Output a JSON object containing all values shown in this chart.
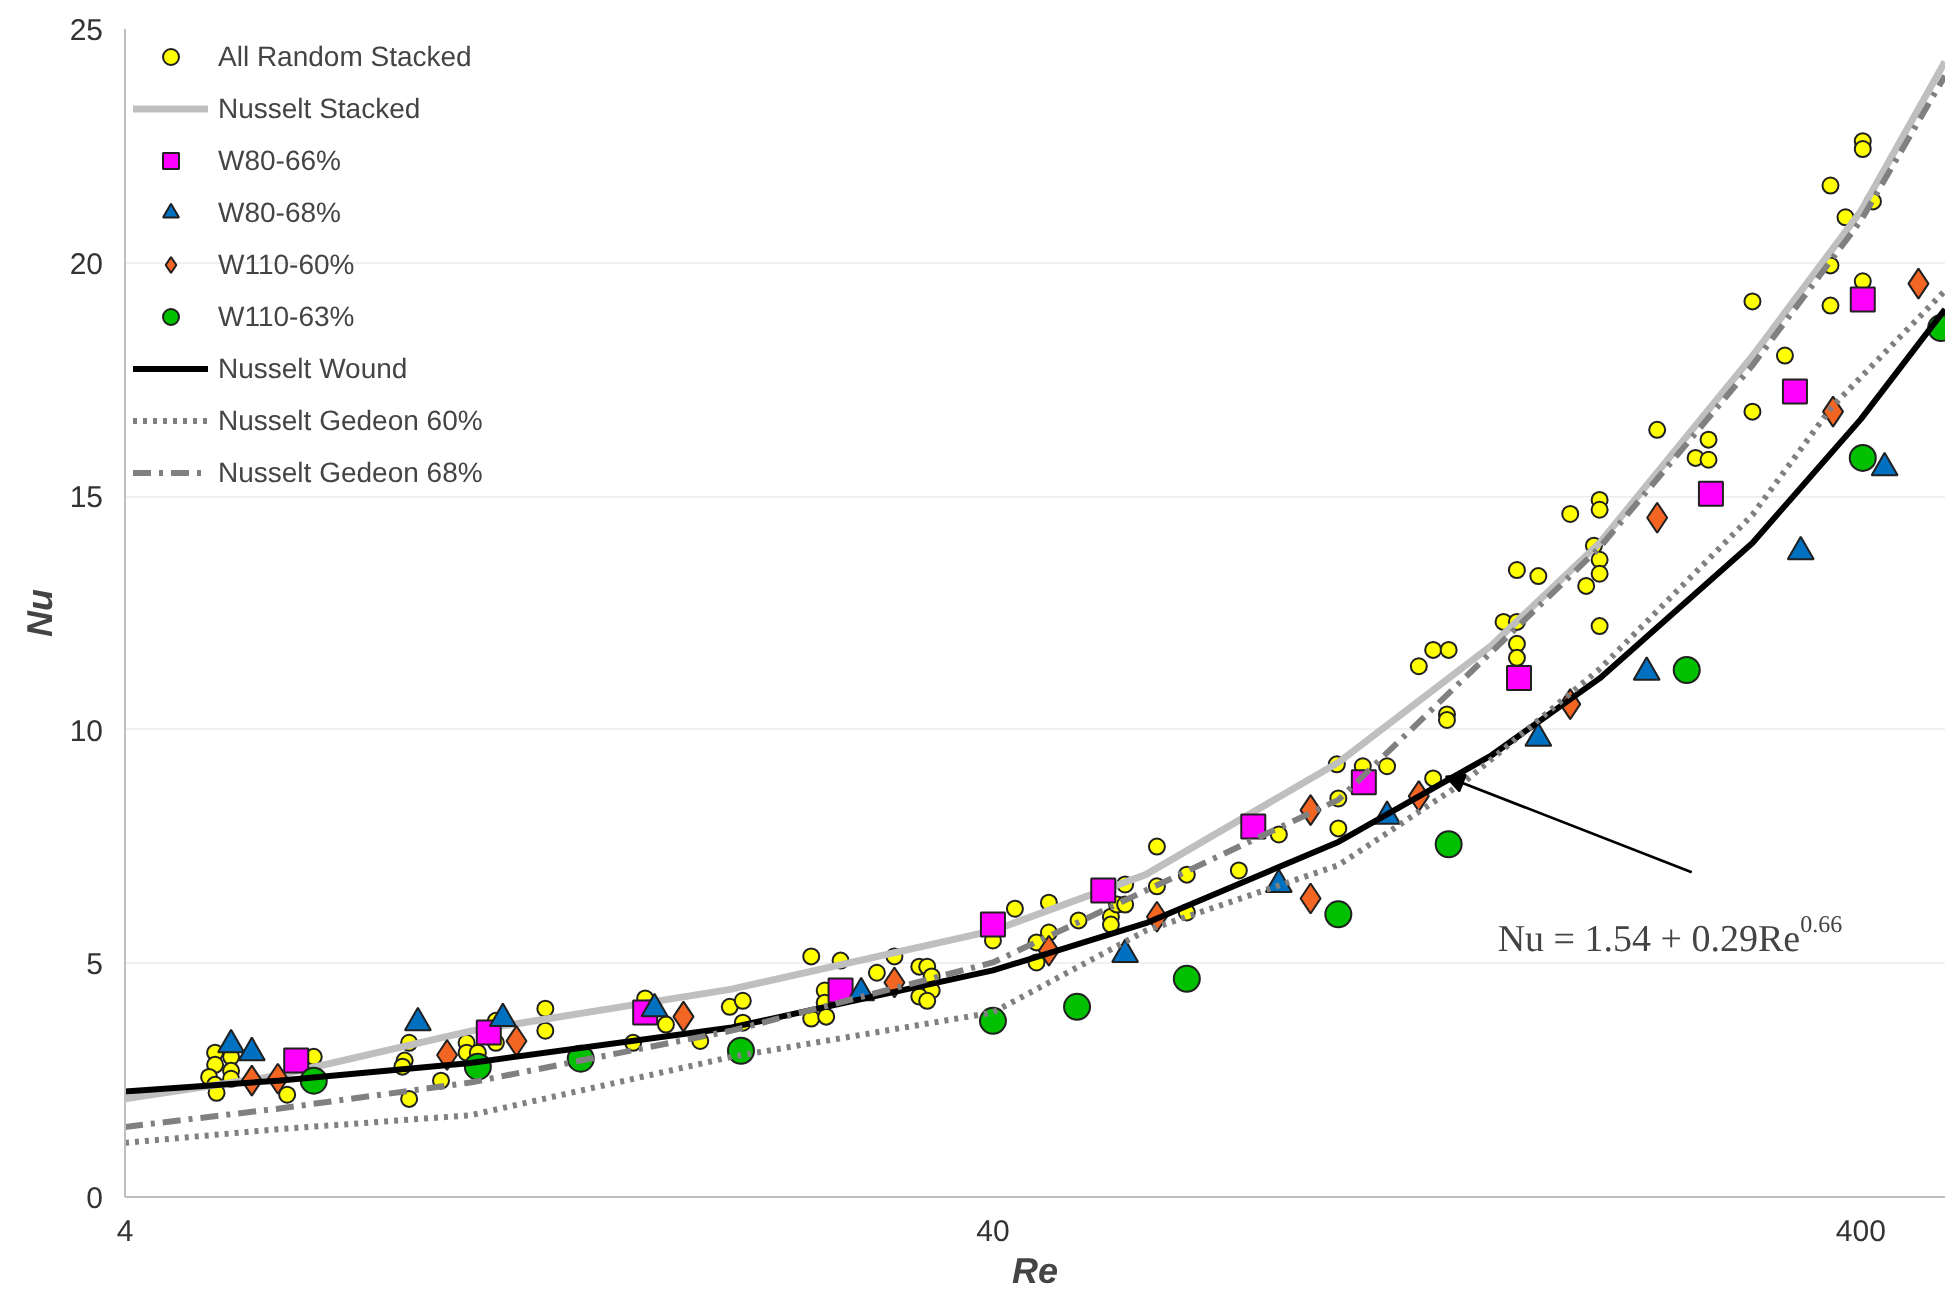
{
  "chart_data": {
    "type": "scatter",
    "xlabel": "Re",
    "ylabel": "Nu",
    "log": "x",
    "xlim": [
      4,
      500
    ],
    "xticks": [
      4,
      40,
      400
    ],
    "ylim": [
      0,
      25
    ],
    "yticks": [
      0,
      5,
      10,
      15,
      20,
      25
    ],
    "grid": "y",
    "legend": "top left",
    "annotations": [
      {
        "text": "Nu = 1.54 + 0.29Re$^{0.66}$",
        "x": 133,
        "y": 9.0
      }
    ],
    "series": [
      {
        "name": "All Random Stacked",
        "marker": "circle",
        "color": "#ffff00",
        "x": [
          5.08,
          5.08,
          5.0,
          5.08,
          5.1,
          5.3,
          5.3,
          5.3,
          6.15,
          6.6,
          8.5,
          8.4,
          8.35,
          8.5,
          9.25,
          9.9,
          9.9,
          10.2,
          10.7,
          10.7,
          12.2,
          12.2,
          15.4,
          15.9,
          16.8,
          18.4,
          19.9,
          20.6,
          20.6,
          24.7,
          26.7,
          30.8,
          29.4,
          32.9,
          33.6,
          34.0,
          34.0,
          32.9,
          33.6,
          25.6,
          25.6,
          24.7,
          25.7,
          40,
          42.4,
          46.4,
          44.9,
          46.4,
          44.9,
          50.2,
          54.7,
          54.7,
          55.6,
          56.8,
          56.8,
          61.8,
          61.8,
          66.9,
          66.9,
          76.8,
          85.4,
          99.6,
          100,
          100,
          106.7,
          113.8,
          402,
          402,
          369,
          413,
          384,
          369,
          402,
          369,
          300,
          327,
          300,
          267,
          258,
          267,
          233,
          200,
          200,
          185,
          197,
          200,
          200,
          193,
          160.6,
          170,
          200,
          155,
          160.6,
          160.6,
          160.6,
          123.8,
          128.6,
          134,
          133.4,
          133.4,
          128.6
        ],
        "values": [
          3.09,
          2.83,
          2.57,
          2.4,
          2.23,
          3.0,
          2.7,
          2.53,
          2.19,
          3.0,
          3.3,
          2.92,
          2.79,
          2.1,
          2.49,
          3.3,
          3.09,
          3.09,
          3.77,
          3.3,
          4.03,
          3.56,
          3.3,
          4.25,
          3.69,
          3.34,
          4.07,
          4.2,
          3.73,
          5.15,
          5.06,
          5.15,
          4.8,
          4.93,
          4.93,
          4.72,
          4.42,
          4.29,
          4.2,
          4.42,
          4.16,
          3.82,
          3.86,
          5.49,
          6.17,
          6.3,
          5.45,
          5.66,
          5.02,
          5.92,
          6.0,
          5.83,
          6.26,
          6.26,
          6.69,
          6.65,
          7.5,
          6.9,
          6.09,
          6.99,
          7.76,
          9.26,
          8.53,
          7.89,
          9.22,
          9.22,
          22.6,
          22.43,
          21.65,
          21.31,
          20.97,
          19.94,
          19.6,
          19.08,
          19.17,
          18.01,
          16.81,
          16.21,
          15.82,
          15.78,
          16.42,
          14.92,
          14.71,
          14.62,
          13.94,
          13.64,
          13.34,
          13.08,
          13.42,
          13.29,
          12.22,
          12.31,
          12.31,
          11.84,
          11.54,
          11.36,
          11.71,
          11.71,
          10.33,
          10.21,
          8.96
        ]
      },
      {
        "name": "Nusselt Stacked",
        "type": "line",
        "line_style": "solid",
        "color": "#bfbfbf",
        "x": [
          4,
          6,
          10,
          20,
          40,
          60,
          100,
          150,
          200,
          300,
          400,
          500
        ],
        "values": [
          2.1,
          2.6,
          3.55,
          4.45,
          5.7,
          6.9,
          9.3,
          11.8,
          14.0,
          18.0,
          21.1,
          24.3
        ]
      },
      {
        "name": "W80-66%",
        "marker": "square",
        "color": "#ff00ff",
        "x": [
          6.3,
          10.5,
          15.9,
          26.7,
          40,
          53.6,
          79.8,
          107,
          161.5,
          268.7,
          335.8,
          402
        ],
        "values": [
          2.92,
          3.52,
          3.95,
          4.42,
          5.83,
          6.56,
          7.93,
          8.88,
          11.11,
          15.05,
          17.24,
          19.21
        ]
      },
      {
        "name": "W80-68%",
        "marker": "triangle",
        "color": "#0070c0",
        "x": [
          5.3,
          5.6,
          8.7,
          10.9,
          16.3,
          28.2,
          56.8,
          85.4,
          113.8,
          170,
          226.6,
          341,
          426
        ],
        "values": [
          3.26,
          3.09,
          3.73,
          3.82,
          4.03,
          4.37,
          5.19,
          6.69,
          8.15,
          9.82,
          11.23,
          13.81,
          15.61
        ]
      },
      {
        "name": "W110-60%",
        "marker": "diamond",
        "color": "#f26522",
        "x": [
          5.6,
          6.0,
          9.4,
          11.3,
          17.6,
          30.8,
          46.4,
          61.8,
          92.9,
          92.9,
          123.8,
          185,
          233,
          371.5,
          466
        ],
        "values": [
          2.49,
          2.53,
          3.04,
          3.34,
          3.86,
          4.59,
          5.27,
          6.0,
          8.28,
          6.39,
          8.58,
          10.55,
          14.54,
          16.81,
          19.55
        ]
      },
      {
        "name": "W110-63%",
        "marker": "circle",
        "color": "#00c000",
        "x": [
          6.6,
          10.2,
          13.4,
          20.5,
          40,
          50,
          66.9,
          100,
          134,
          252,
          402,
          495
        ],
        "values": [
          2.49,
          2.79,
          2.96,
          3.13,
          3.77,
          4.07,
          4.67,
          6.05,
          7.55,
          11.28,
          15.82,
          18.6
        ]
      },
      {
        "name": "Nusselt Wound",
        "type": "line",
        "line_style": "solid",
        "color": "#000000",
        "x": [
          4,
          6,
          10,
          20,
          40,
          60,
          100,
          150,
          200,
          300,
          400,
          500
        ],
        "values": [
          2.26,
          2.49,
          2.87,
          3.63,
          4.85,
          5.86,
          7.6,
          9.45,
          11.1,
          14.0,
          16.65,
          19.0
        ]
      },
      {
        "name": "Nusselt Gedeon 60%",
        "type": "line",
        "line_style": "dotted",
        "color": "#808080",
        "x": [
          4,
          6,
          10,
          20,
          40,
          60,
          100,
          140,
          200,
          300,
          370,
          500
        ],
        "values": [
          1.16,
          1.45,
          1.75,
          3.0,
          3.95,
          5.7,
          7.1,
          8.9,
          11.3,
          14.6,
          16.9,
          19.4
        ]
      },
      {
        "name": "Nusselt Gedeon 68%",
        "type": "line",
        "line_style": "dashdot",
        "color": "#808080",
        "x": [
          4,
          6,
          10,
          20,
          40,
          60,
          100,
          200,
          300,
          400,
          500
        ],
        "values": [
          1.5,
          1.89,
          2.45,
          3.56,
          5.02,
          6.56,
          8.5,
          13.9,
          17.8,
          20.9,
          24.0
        ]
      }
    ]
  }
}
